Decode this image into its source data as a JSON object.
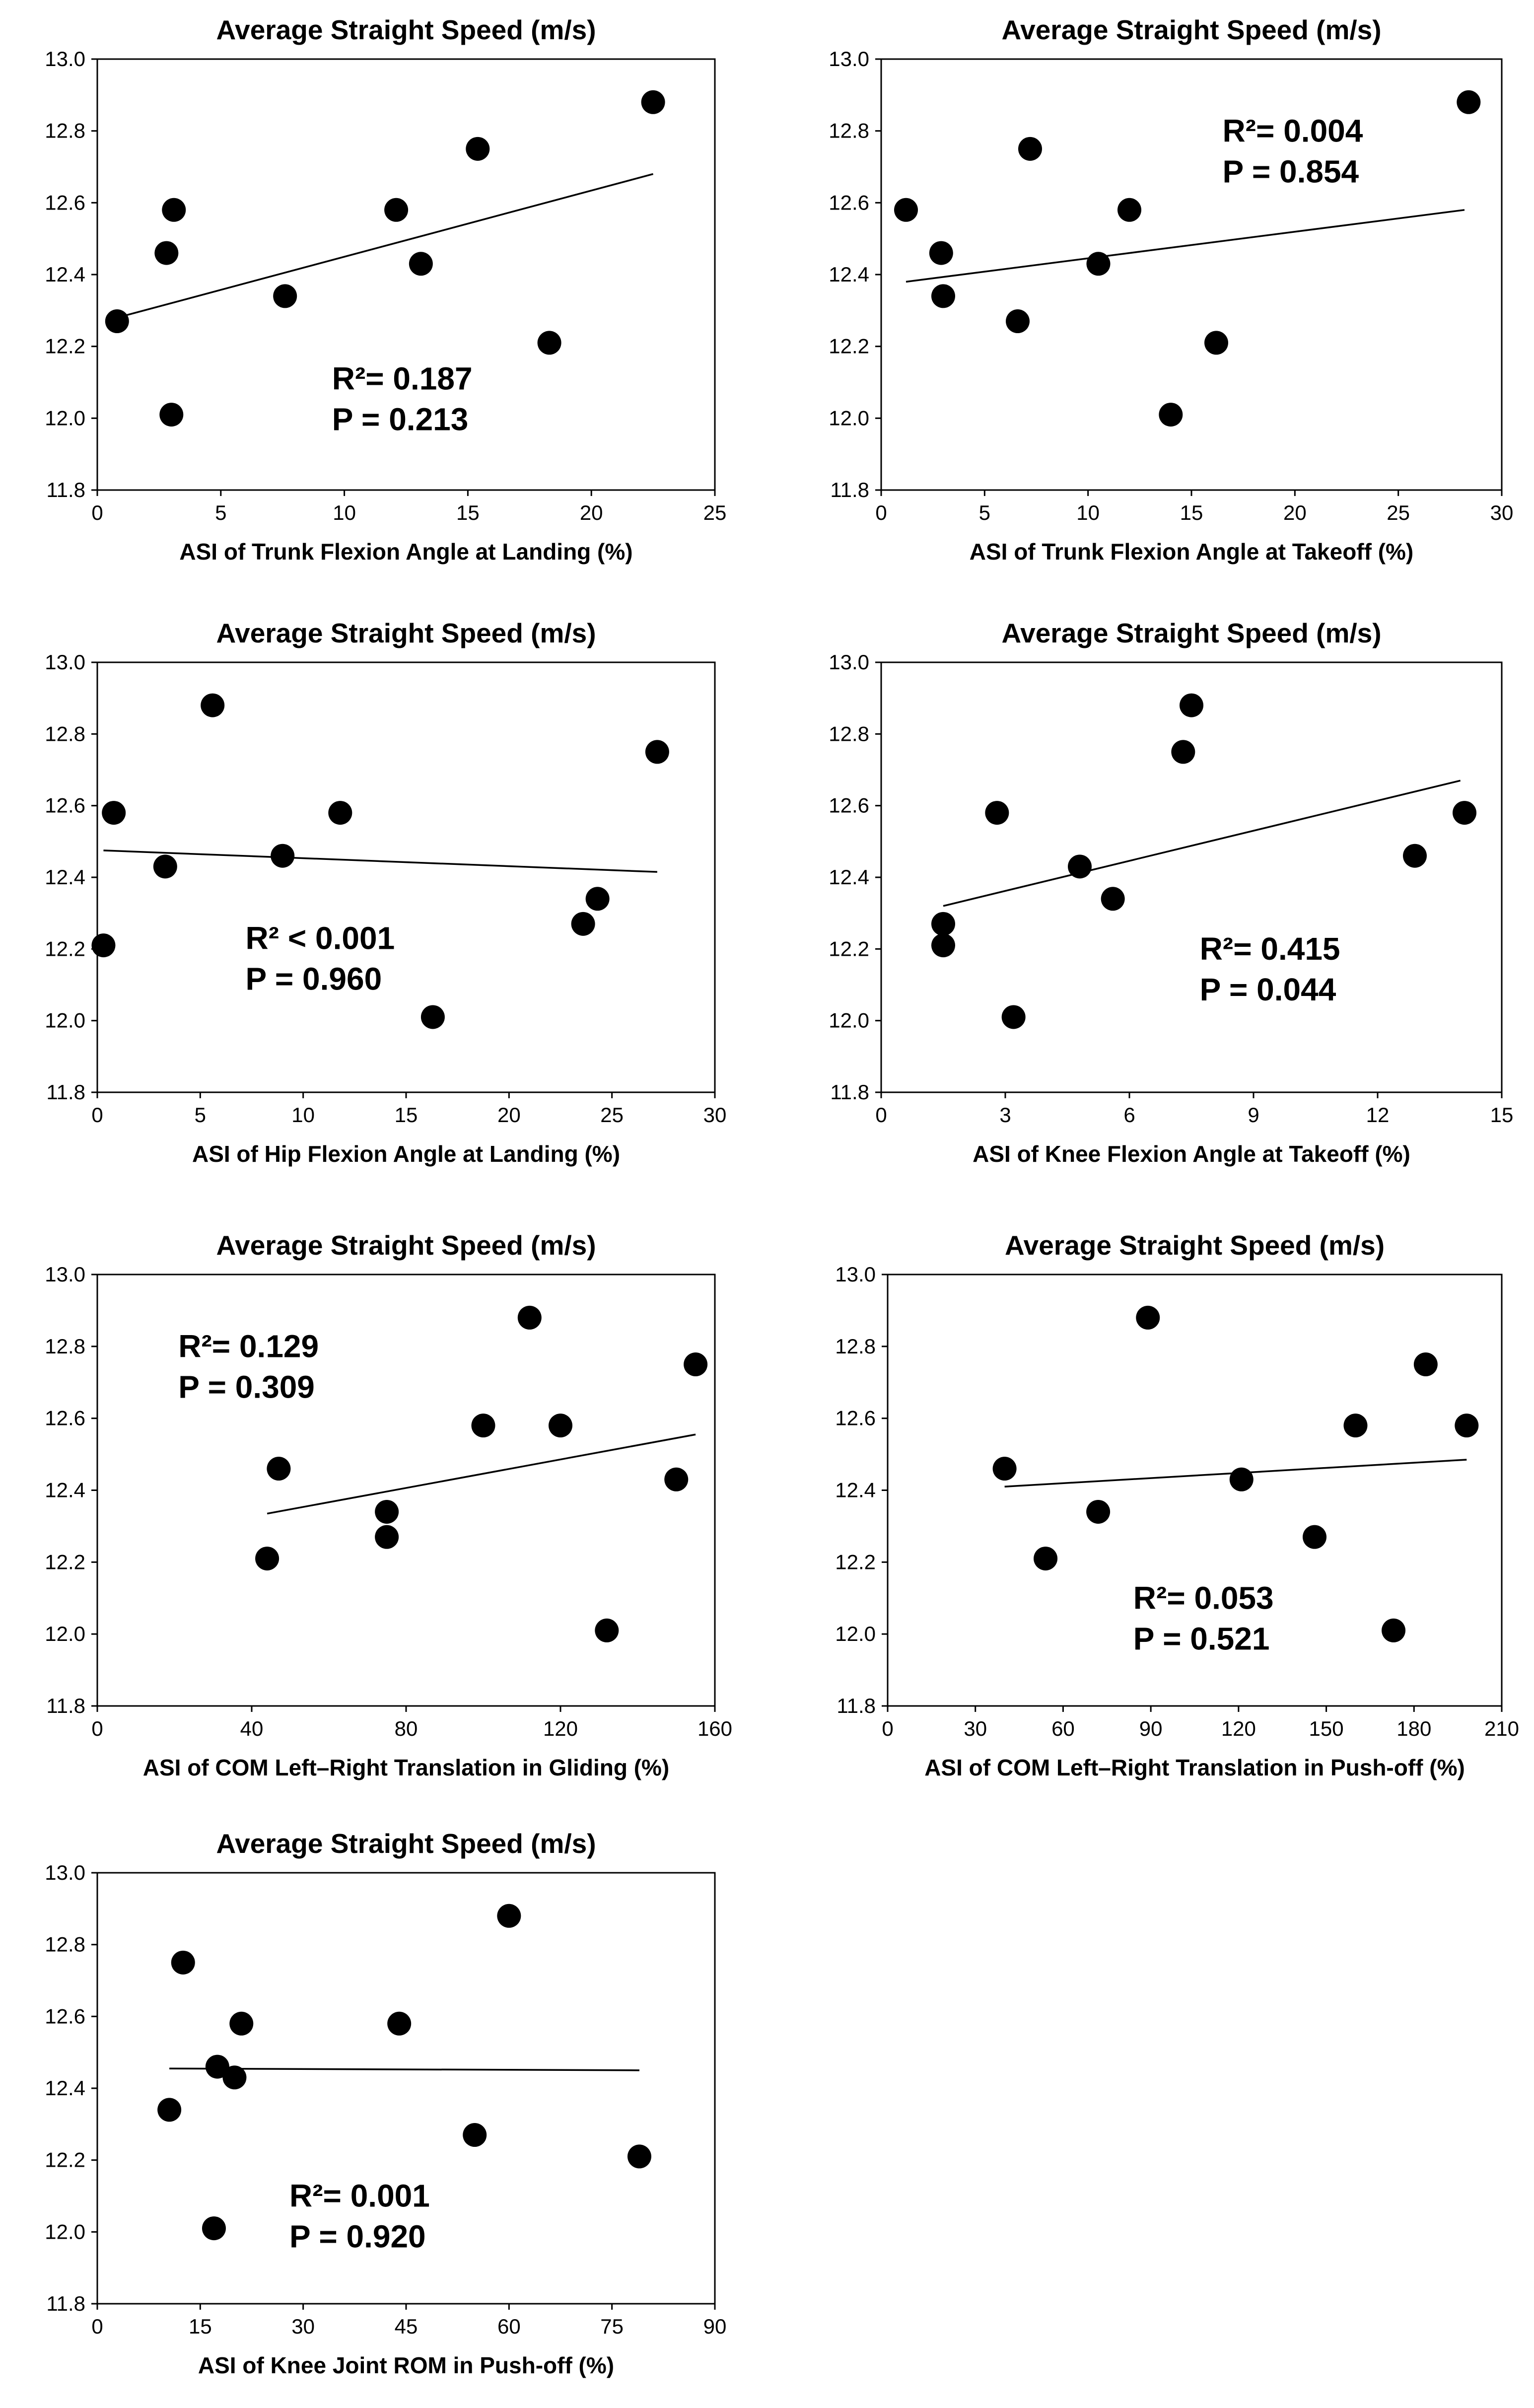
{
  "chart_data": [
    {
      "type": "scatter",
      "title": "Average Straight Speed (m/s)",
      "xlabel": "ASI of Trunk Flexion Angle at Landing (%)",
      "ylabel": "",
      "xlim": [
        0,
        25
      ],
      "xticks": [
        0,
        5,
        10,
        15,
        20,
        25
      ],
      "ylim": [
        11.8,
        13.0
      ],
      "yticks": [
        11.8,
        12.0,
        12.2,
        12.4,
        12.6,
        12.8,
        13.0
      ],
      "points": [
        [
          0.8,
          12.27
        ],
        [
          2.8,
          12.46
        ],
        [
          3.0,
          12.01
        ],
        [
          3.1,
          12.58
        ],
        [
          7.6,
          12.34
        ],
        [
          12.1,
          12.58
        ],
        [
          13.1,
          12.43
        ],
        [
          15.4,
          12.75
        ],
        [
          18.3,
          12.21
        ],
        [
          22.5,
          12.88
        ]
      ],
      "fit": [
        [
          0.8,
          12.28
        ],
        [
          22.5,
          12.68
        ]
      ],
      "stats": {
        "r2": "R²= 0.187",
        "p": "P = 0.213"
      },
      "stats_anchor": [
        9.5,
        12.08
      ]
    },
    {
      "type": "scatter",
      "title": "Average Straight Speed (m/s)",
      "xlabel": "ASI of Trunk Flexion Angle at Takeoff (%)",
      "ylabel": "",
      "xlim": [
        0,
        30
      ],
      "xticks": [
        0,
        5,
        10,
        15,
        20,
        25,
        30
      ],
      "ylim": [
        11.8,
        13.0
      ],
      "yticks": [
        11.8,
        12.0,
        12.2,
        12.4,
        12.6,
        12.8,
        13.0
      ],
      "points": [
        [
          1.2,
          12.58
        ],
        [
          2.9,
          12.46
        ],
        [
          3.0,
          12.34
        ],
        [
          6.6,
          12.27
        ],
        [
          7.2,
          12.75
        ],
        [
          10.5,
          12.43
        ],
        [
          12.0,
          12.58
        ],
        [
          14.0,
          12.01
        ],
        [
          16.2,
          12.21
        ],
        [
          28.4,
          12.88
        ]
      ],
      "fit": [
        [
          1.2,
          12.38
        ],
        [
          28.2,
          12.58
        ]
      ],
      "stats": {
        "r2": "R²= 0.004",
        "p": "P = 0.854"
      },
      "stats_anchor": [
        16.5,
        12.77
      ]
    },
    {
      "type": "scatter",
      "title": "Average Straight Speed (m/s)",
      "xlabel": "ASI of Hip Flexion Angle at Landing (%)",
      "ylabel": "",
      "xlim": [
        0,
        30
      ],
      "xticks": [
        0,
        5,
        10,
        15,
        20,
        25,
        30
      ],
      "ylim": [
        11.8,
        13.0
      ],
      "yticks": [
        11.8,
        12.0,
        12.2,
        12.4,
        12.6,
        12.8,
        13.0
      ],
      "points": [
        [
          0.3,
          12.21
        ],
        [
          0.8,
          12.58
        ],
        [
          3.3,
          12.43
        ],
        [
          5.6,
          12.88
        ],
        [
          9.0,
          12.46
        ],
        [
          11.8,
          12.58
        ],
        [
          16.3,
          12.01
        ],
        [
          23.6,
          12.27
        ],
        [
          24.3,
          12.34
        ],
        [
          27.2,
          12.75
        ]
      ],
      "fit": [
        [
          0.3,
          12.475
        ],
        [
          27.2,
          12.415
        ]
      ],
      "stats": {
        "r2": "R² < 0.001",
        "p": "P = 0.960"
      },
      "stats_anchor": [
        7.2,
        12.2
      ]
    },
    {
      "type": "scatter",
      "title": "Average Straight Speed (m/s)",
      "xlabel": "ASI of Knee Flexion Angle at Takeoff (%)",
      "ylabel": "",
      "xlim": [
        0,
        15
      ],
      "xticks": [
        0,
        3,
        6,
        9,
        12,
        15
      ],
      "ylim": [
        11.8,
        13.0
      ],
      "yticks": [
        11.8,
        12.0,
        12.2,
        12.4,
        12.6,
        12.8,
        13.0
      ],
      "points": [
        [
          1.5,
          12.27
        ],
        [
          1.5,
          12.21
        ],
        [
          2.8,
          12.58
        ],
        [
          3.2,
          12.01
        ],
        [
          4.8,
          12.43
        ],
        [
          5.6,
          12.34
        ],
        [
          7.3,
          12.75
        ],
        [
          7.5,
          12.88
        ],
        [
          12.9,
          12.46
        ],
        [
          14.1,
          12.58
        ]
      ],
      "fit": [
        [
          1.5,
          12.32
        ],
        [
          14.0,
          12.67
        ]
      ],
      "stats": {
        "r2": "R²= 0.415",
        "p": "P = 0.044"
      },
      "stats_anchor": [
        7.7,
        12.17
      ]
    },
    {
      "type": "scatter",
      "title": "Average Straight Speed (m/s)",
      "xlabel": "ASI of COM Left–Right Translation in Gliding (%)",
      "ylabel": "",
      "xlim": [
        0,
        160
      ],
      "xticks": [
        0,
        40,
        80,
        120,
        160
      ],
      "ylim": [
        11.8,
        13.0
      ],
      "yticks": [
        11.8,
        12.0,
        12.2,
        12.4,
        12.6,
        12.8,
        13.0
      ],
      "points": [
        [
          44,
          12.21
        ],
        [
          47,
          12.46
        ],
        [
          75,
          12.34
        ],
        [
          75,
          12.27
        ],
        [
          100,
          12.58
        ],
        [
          112,
          12.88
        ],
        [
          120,
          12.58
        ],
        [
          132,
          12.01
        ],
        [
          150,
          12.43
        ],
        [
          155,
          12.75
        ]
      ],
      "fit": [
        [
          44,
          12.335
        ],
        [
          155,
          12.555
        ]
      ],
      "stats": {
        "r2": "R²= 0.129",
        "p": "P = 0.309"
      },
      "stats_anchor": [
        21,
        12.77
      ]
    },
    {
      "type": "scatter",
      "title": "Average Straight Speed (m/s)",
      "xlabel": "ASI of COM Left–Right Translation in Push-off (%)",
      "ylabel": "",
      "xlim": [
        0,
        210
      ],
      "xticks": [
        0,
        30,
        60,
        90,
        120,
        150,
        180,
        210
      ],
      "ylim": [
        11.8,
        13.0
      ],
      "yticks": [
        11.8,
        12.0,
        12.2,
        12.4,
        12.6,
        12.8,
        13.0
      ],
      "points": [
        [
          40,
          12.46
        ],
        [
          54,
          12.21
        ],
        [
          72,
          12.34
        ],
        [
          89,
          12.88
        ],
        [
          121,
          12.43
        ],
        [
          146,
          12.27
        ],
        [
          160,
          12.58
        ],
        [
          173,
          12.01
        ],
        [
          184,
          12.75
        ],
        [
          198,
          12.58
        ]
      ],
      "fit": [
        [
          40,
          12.41
        ],
        [
          198,
          12.485
        ]
      ],
      "stats": {
        "r2": "R²= 0.053",
        "p": "P = 0.521"
      },
      "stats_anchor": [
        84,
        12.07
      ]
    },
    {
      "type": "scatter",
      "title": "Average Straight Speed (m/s)",
      "xlabel": "ASI of Knee Joint ROM in Push-off (%)",
      "ylabel": "",
      "xlim": [
        0,
        90
      ],
      "xticks": [
        0,
        15,
        30,
        45,
        60,
        75,
        90
      ],
      "ylim": [
        11.8,
        13.0
      ],
      "yticks": [
        11.8,
        12.0,
        12.2,
        12.4,
        12.6,
        12.8,
        13.0
      ],
      "points": [
        [
          10.5,
          12.34
        ],
        [
          12.5,
          12.75
        ],
        [
          17,
          12.01
        ],
        [
          17.5,
          12.46
        ],
        [
          20,
          12.43
        ],
        [
          21,
          12.58
        ],
        [
          44,
          12.58
        ],
        [
          55,
          12.27
        ],
        [
          60,
          12.88
        ],
        [
          79,
          12.21
        ]
      ],
      "fit": [
        [
          10.5,
          12.455
        ],
        [
          79,
          12.45
        ]
      ],
      "stats": {
        "r2": "R²= 0.001",
        "p": "P = 0.920"
      },
      "stats_anchor": [
        28,
        12.07
      ]
    }
  ]
}
